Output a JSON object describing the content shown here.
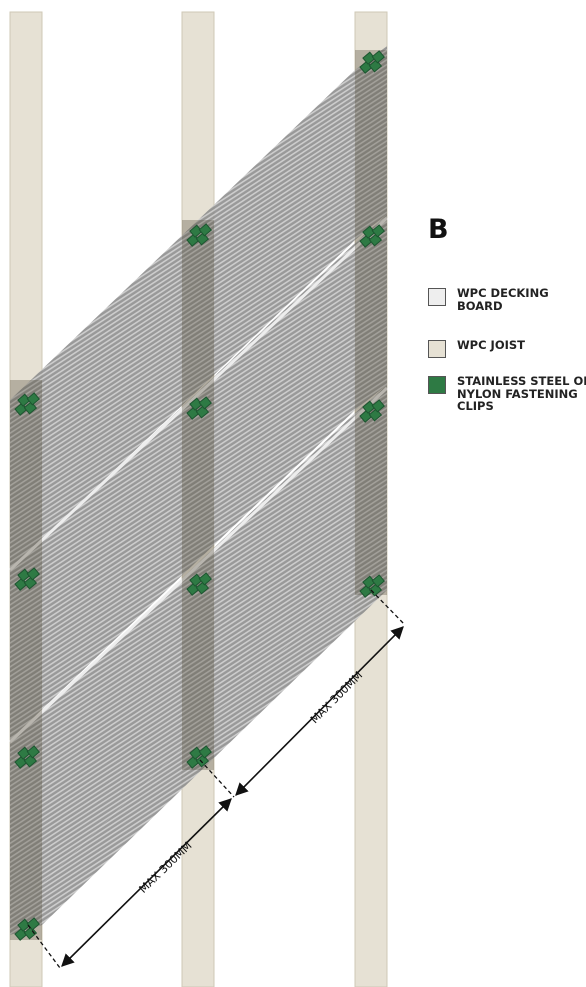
{
  "panel_label": "B",
  "legend": {
    "items": [
      {
        "label": "WPC DECKING BOARD",
        "color": "#eeeeee"
      },
      {
        "label": "WPC JOIST",
        "color": "#e6e1d4"
      },
      {
        "label": "STAINLESS STEEL OR NYLON FASTENING CLIPS",
        "color": "#2e7a44"
      }
    ]
  },
  "dimensions": [
    {
      "label": "MAX 300MM"
    },
    {
      "label": "MAX 300MM"
    }
  ],
  "colors": {
    "joist": "#e6e1d4",
    "board": "#8e8e8e",
    "board_stripe": "#c4c4c4",
    "board_highlight": "#e8e8e8",
    "clip": "#2e7a44",
    "clip_dark": "#1d5530",
    "dimension_line": "#111111"
  }
}
